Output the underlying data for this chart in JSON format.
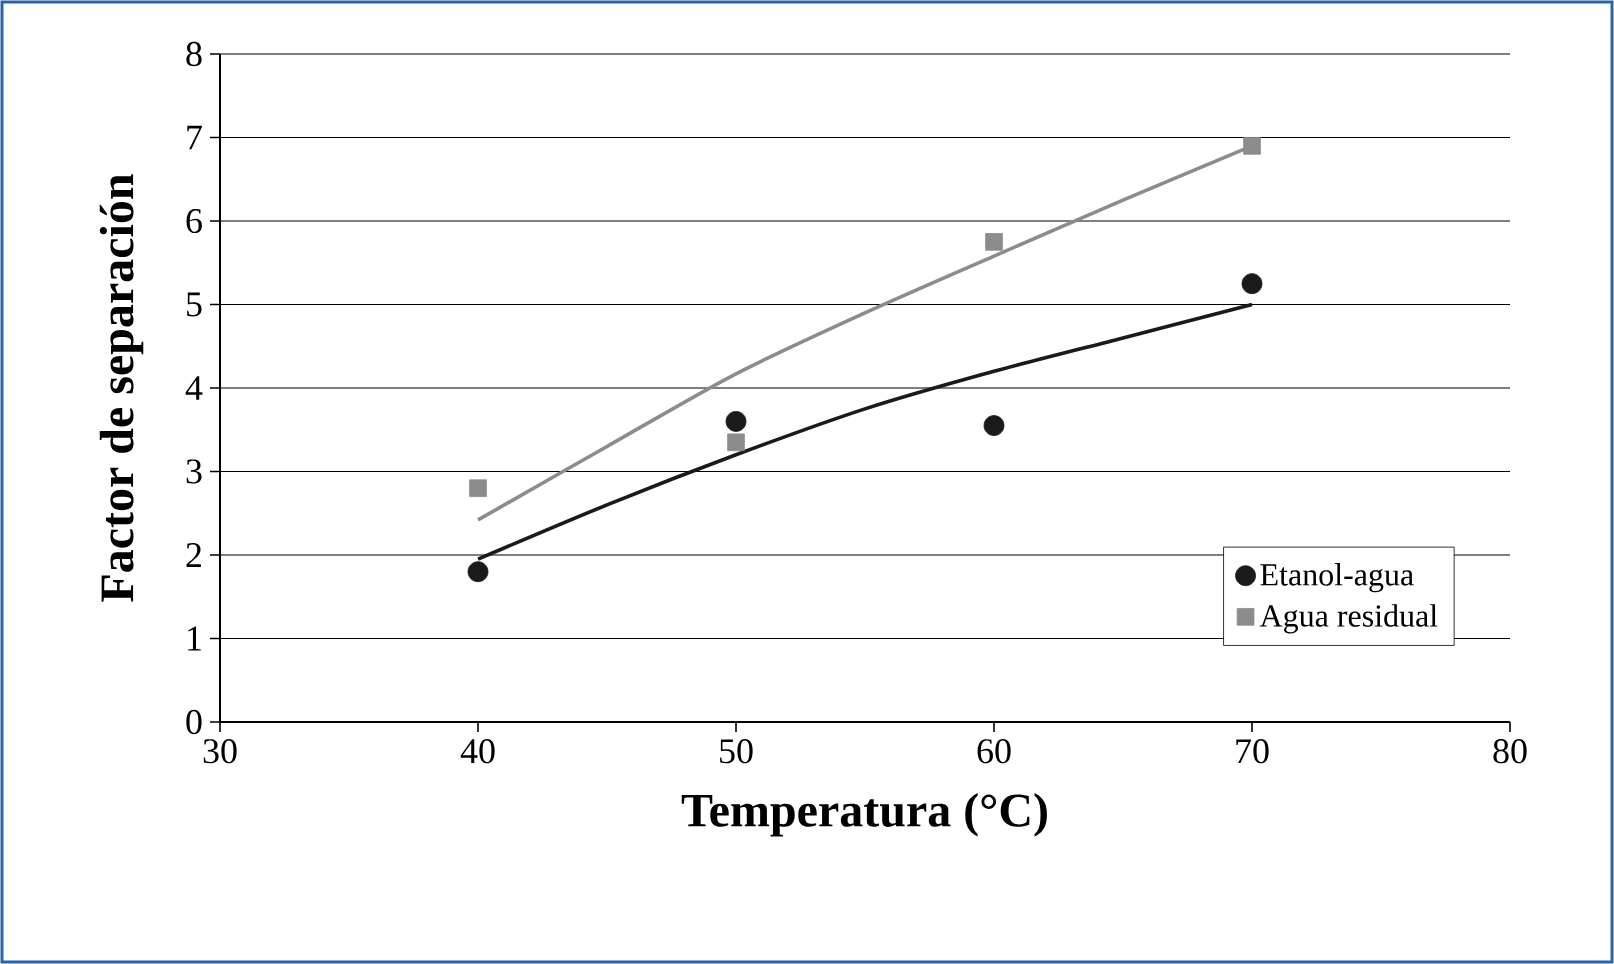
{
  "chart_data": {
    "type": "scatter",
    "xlabel": "Temperatura (°C)",
    "ylabel": "Factor de separación",
    "xlim": [
      30,
      80
    ],
    "xticks": [
      30,
      40,
      50,
      60,
      70,
      80
    ],
    "ylim": [
      0,
      8
    ],
    "yticks": [
      0,
      1,
      2,
      3,
      4,
      5,
      6,
      7,
      8
    ],
    "grid": "y",
    "legend": "bottom right",
    "series": [
      {
        "name": "Etanol-agua",
        "marker": "circle",
        "color": "#1a1a1a",
        "x": [
          40,
          50,
          60,
          70
        ],
        "values": [
          1.8,
          3.6,
          3.55,
          5.25
        ]
      },
      {
        "name": "Agua residual",
        "marker": "square",
        "color": "#8c8c8c",
        "x": [
          40,
          50,
          60,
          70
        ],
        "values": [
          2.8,
          3.35,
          5.75,
          6.9
        ]
      },
      {
        "type": "line",
        "color": "#1a1a1a",
        "x": [
          40,
          45,
          50,
          55,
          60,
          65,
          70
        ],
        "values": [
          1.95,
          2.6,
          3.2,
          3.75,
          4.2,
          4.6,
          5.0
        ]
      },
      {
        "type": "line",
        "color": "#8c8c8c",
        "x": [
          40,
          45,
          50,
          55,
          60,
          65,
          70
        ],
        "values": [
          2.42,
          3.3,
          4.17,
          4.9,
          5.58,
          6.25,
          6.9
        ]
      }
    ]
  }
}
